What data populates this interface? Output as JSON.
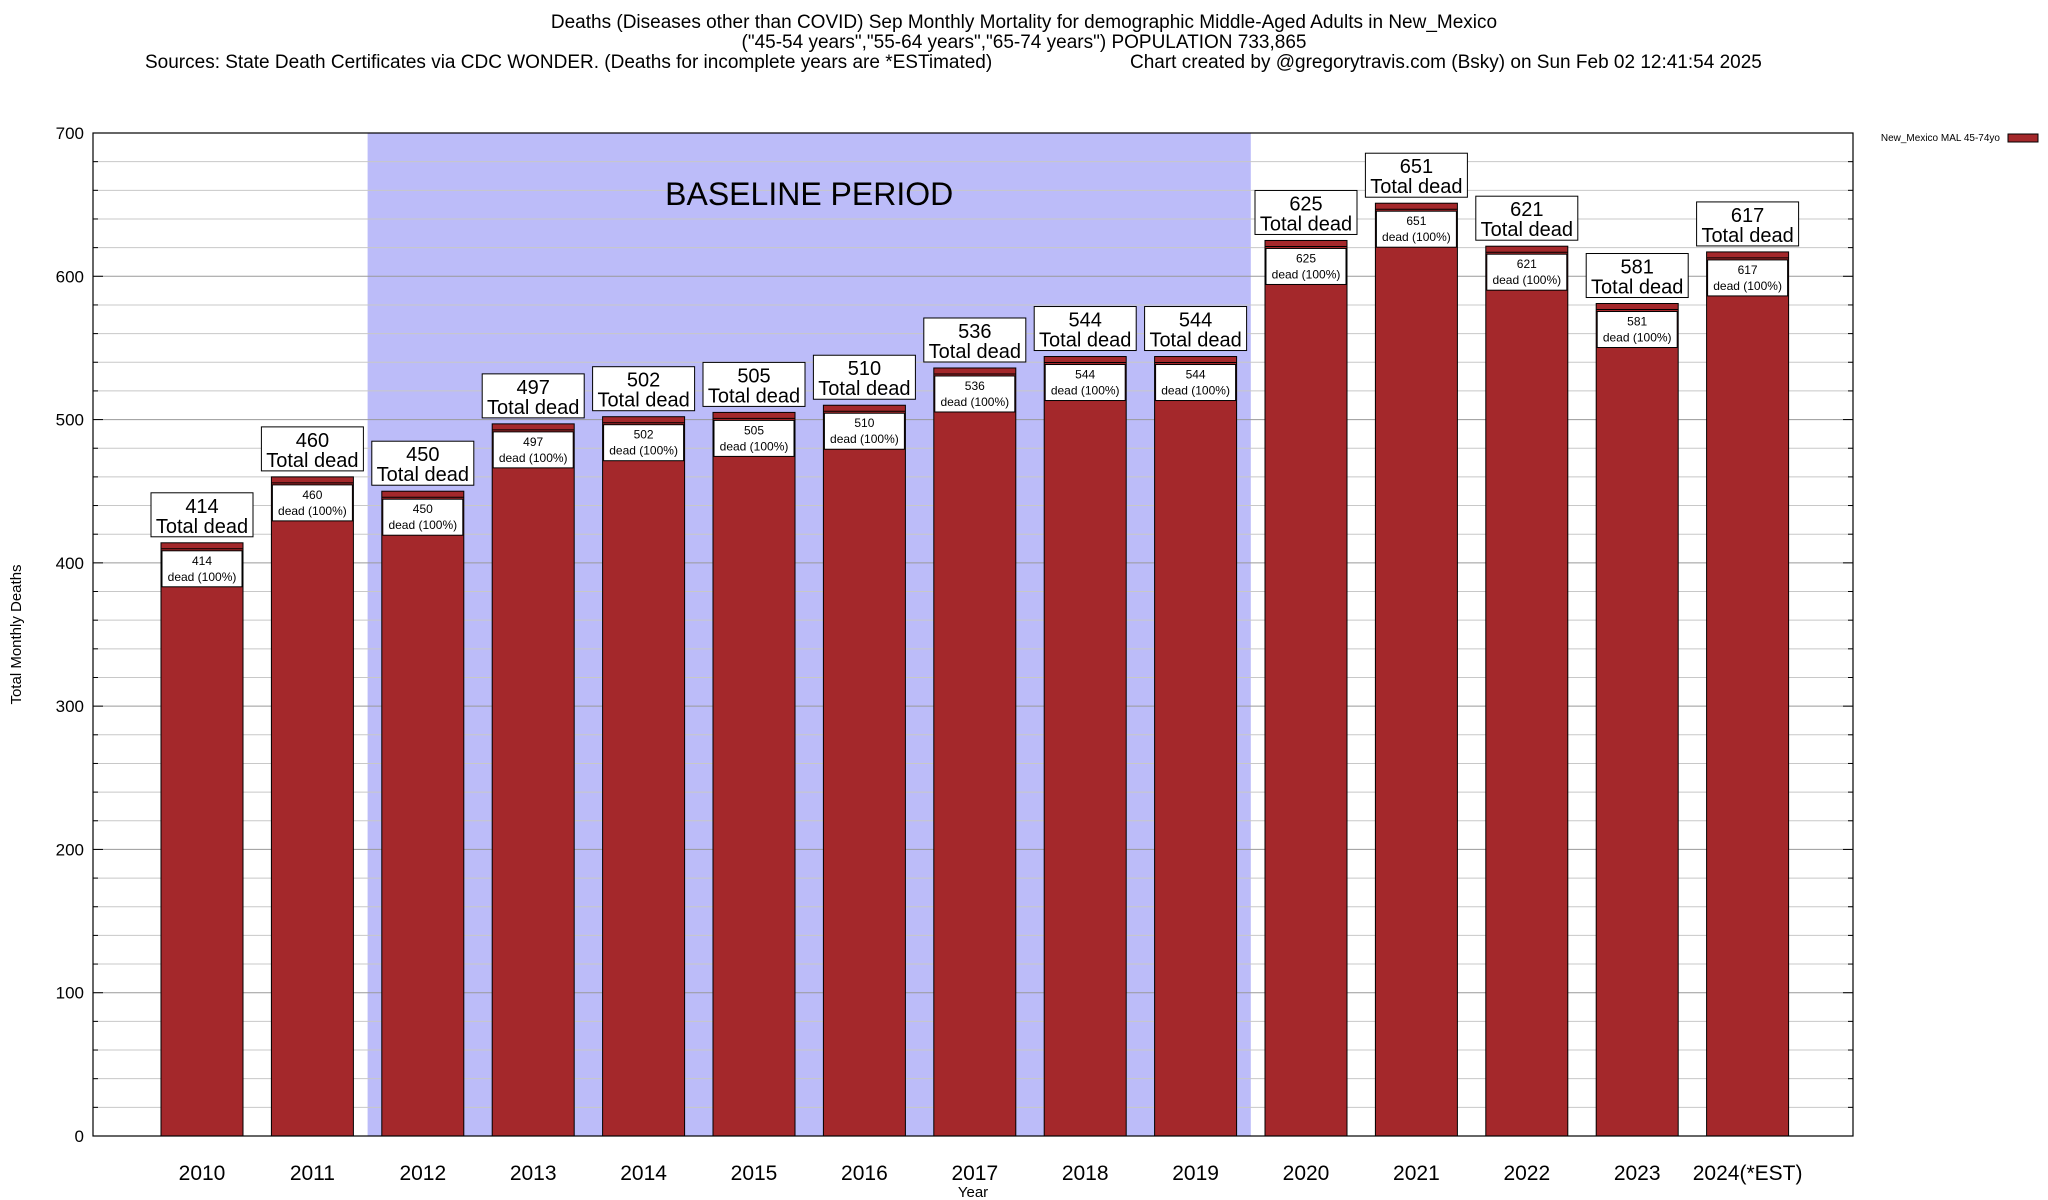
{
  "header": {
    "title": "Deaths (Diseases other than COVID) Sep Monthly Mortality for demographic Middle-Aged Adults in New_Mexico",
    "subtitle": "(\"45-54 years\",\"55-64 years\",\"65-74 years\") POPULATION 733,865",
    "sources": "Sources: State Death Certificates via CDC WONDER. (Deaths for incomplete years are *ESTimated)",
    "credit": "Chart created by @gregorytravis.com (Bsky) on Sun Feb 02 12:41:54 2025"
  },
  "chart_data": {
    "type": "bar",
    "xlabel": "Year",
    "ylabel": "Total Monthly Deaths",
    "ylim": [
      0,
      700
    ],
    "yticks": [
      "0",
      "100",
      "200",
      "300",
      "400",
      "500",
      "600",
      "700"
    ],
    "categories": [
      "2010",
      "2011",
      "2012",
      "2013",
      "2014",
      "2015",
      "2016",
      "2017",
      "2018",
      "2019",
      "2020",
      "2021",
      "2022",
      "2023",
      "2024(*EST)"
    ],
    "series": [
      {
        "name": "New_Mexico MAL 45-74yo",
        "color": "#a4282b",
        "values": [
          414,
          460,
          450,
          497,
          502,
          505,
          510,
          536,
          544,
          544,
          625,
          651,
          621,
          581,
          617
        ]
      }
    ],
    "total_label_text": "Total dead",
    "inner_label_text": "dead (100%)",
    "baseline_band": {
      "label": "BASELINE PERIOD",
      "from_category": "2012",
      "to_category": "2019",
      "color": "#bcbcf9"
    },
    "grid": true,
    "legend_position": "top-right"
  }
}
